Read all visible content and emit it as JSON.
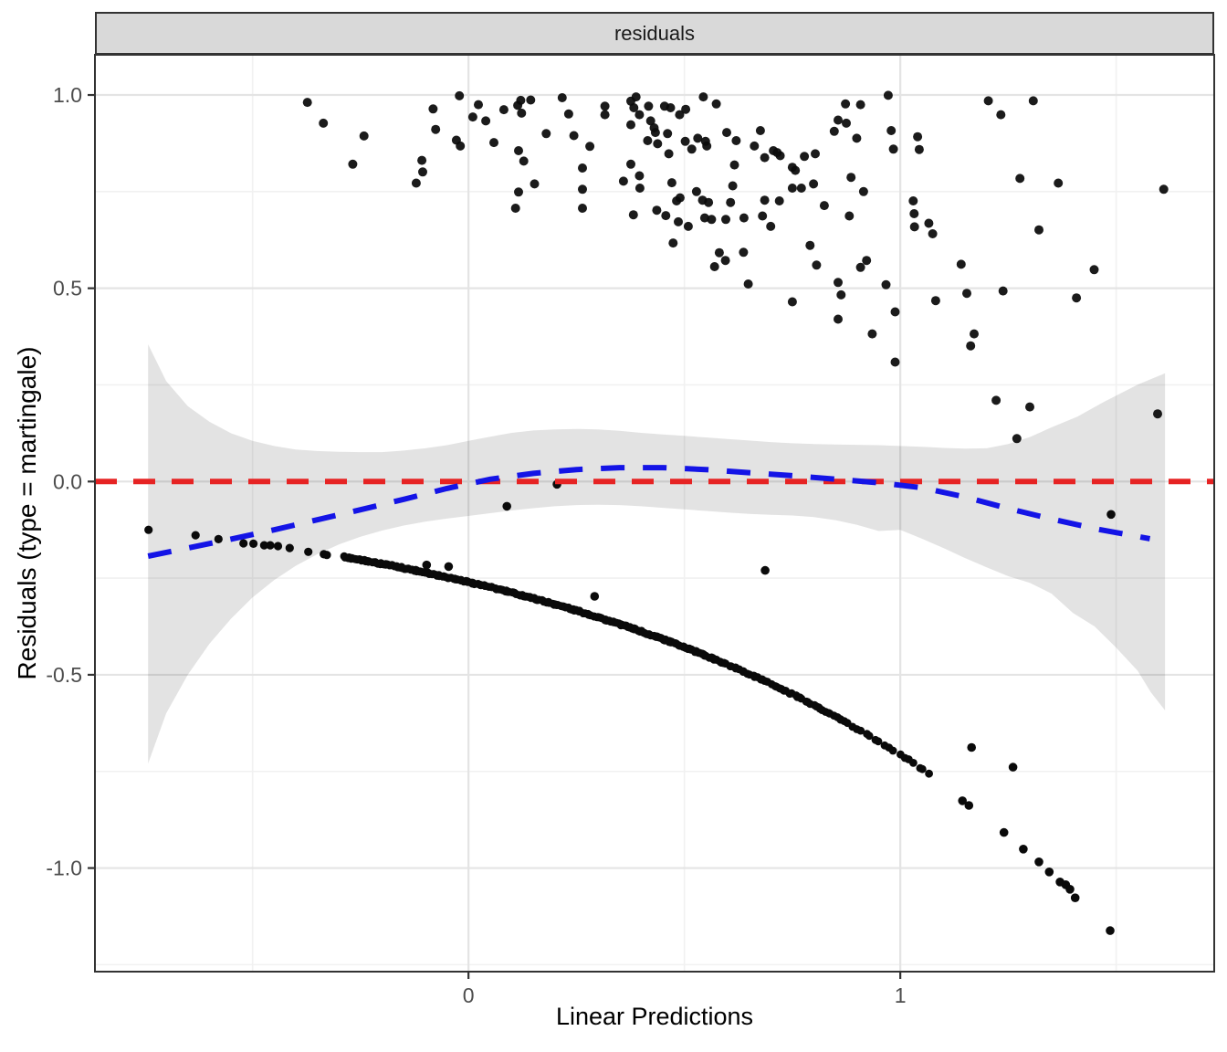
{
  "strip": {
    "label": "residuals"
  },
  "axis": {
    "x": {
      "label": "Linear Predictions",
      "range": [
        -0.865,
        1.727
      ],
      "ticks": [
        {
          "v": 0,
          "t": "0"
        },
        {
          "v": 1,
          "t": "1"
        }
      ],
      "minor": [
        -0.5,
        0.5,
        1.5
      ]
    },
    "y": {
      "label": "Residuals (type = martingale)",
      "range": [
        -1.268,
        1.104
      ],
      "ticks": [
        {
          "v": 1.0,
          "t": "1.0"
        },
        {
          "v": 0.5,
          "t": "0.5"
        },
        {
          "v": 0.0,
          "t": "0.0"
        },
        {
          "v": -0.5,
          "t": "-0.5"
        },
        {
          "v": -1.0,
          "t": "-1.0"
        }
      ],
      "minor": [
        0.75,
        0.25,
        -0.25,
        -0.75,
        -1.25
      ]
    }
  },
  "colors": {
    "reference_line": "#E62323",
    "smooth_line": "#1414E6",
    "band_fill": "#000000",
    "band_opacity": 0.11,
    "point": "#0a0a0a",
    "grid_major": "#E4E4E4",
    "grid_minor": "#F1F1F1",
    "panel_border": "#333333",
    "tick_label": "#4D4D4D",
    "tick_mark": "#333333"
  },
  "chart_data": {
    "type": "scatter",
    "facet_label": "residuals",
    "xlabel": "Linear Predictions",
    "ylabel": "Residuals (type = martingale)",
    "x_ticks": [
      0,
      1
    ],
    "y_ticks": [
      1.0,
      0.5,
      0.0,
      -0.5,
      -1.0
    ],
    "grid": true,
    "reference_line": {
      "y": 0,
      "color": "red",
      "linetype": "dashed"
    },
    "smooth": {
      "color": "blue",
      "linetype": "dashed",
      "line": [
        [
          -0.742,
          -0.193
        ],
        [
          -0.65,
          -0.172
        ],
        [
          -0.55,
          -0.149
        ],
        [
          -0.45,
          -0.125
        ],
        [
          -0.35,
          -0.099
        ],
        [
          -0.25,
          -0.073
        ],
        [
          -0.15,
          -0.046
        ],
        [
          -0.05,
          -0.018
        ],
        [
          0.05,
          0.006
        ],
        [
          0.15,
          0.021
        ],
        [
          0.25,
          0.031
        ],
        [
          0.35,
          0.036
        ],
        [
          0.45,
          0.036
        ],
        [
          0.55,
          0.031
        ],
        [
          0.65,
          0.023
        ],
        [
          0.75,
          0.015
        ],
        [
          0.85,
          0.006
        ],
        [
          0.95,
          -0.003
        ],
        [
          1.05,
          -0.016
        ],
        [
          1.15,
          -0.04
        ],
        [
          1.25,
          -0.07
        ],
        [
          1.35,
          -0.097
        ],
        [
          1.45,
          -0.122
        ],
        [
          1.578,
          -0.148
        ]
      ]
    },
    "confidence_band": {
      "upper": [
        [
          -0.742,
          0.355
        ],
        [
          -0.7,
          0.26
        ],
        [
          -0.65,
          0.195
        ],
        [
          -0.6,
          0.155
        ],
        [
          -0.55,
          0.125
        ],
        [
          -0.5,
          0.105
        ],
        [
          -0.45,
          0.092
        ],
        [
          -0.4,
          0.083
        ],
        [
          -0.35,
          0.079
        ],
        [
          -0.3,
          0.077
        ],
        [
          -0.25,
          0.076
        ],
        [
          -0.2,
          0.076
        ],
        [
          -0.15,
          0.08
        ],
        [
          -0.1,
          0.086
        ],
        [
          -0.05,
          0.094
        ],
        [
          0.0,
          0.105
        ],
        [
          0.05,
          0.116
        ],
        [
          0.1,
          0.126
        ],
        [
          0.15,
          0.132
        ],
        [
          0.2,
          0.135
        ],
        [
          0.25,
          0.136
        ],
        [
          0.3,
          0.135
        ],
        [
          0.35,
          0.131
        ],
        [
          0.4,
          0.126
        ],
        [
          0.45,
          0.122
        ],
        [
          0.5,
          0.118
        ],
        [
          0.55,
          0.114
        ],
        [
          0.6,
          0.11
        ],
        [
          0.65,
          0.106
        ],
        [
          0.7,
          0.102
        ],
        [
          0.75,
          0.099
        ],
        [
          0.8,
          0.097
        ],
        [
          0.85,
          0.096
        ],
        [
          0.9,
          0.095
        ],
        [
          0.95,
          0.094
        ],
        [
          1.0,
          0.092
        ],
        [
          1.05,
          0.09
        ],
        [
          1.1,
          0.087
        ],
        [
          1.15,
          0.085
        ],
        [
          1.2,
          0.086
        ],
        [
          1.25,
          0.097
        ],
        [
          1.3,
          0.115
        ],
        [
          1.35,
          0.14
        ],
        [
          1.41,
          0.168
        ],
        [
          1.47,
          0.205
        ],
        [
          1.55,
          0.251
        ],
        [
          1.613,
          0.28
        ]
      ],
      "lower": [
        [
          -0.742,
          -0.73
        ],
        [
          -0.7,
          -0.6
        ],
        [
          -0.65,
          -0.5
        ],
        [
          -0.6,
          -0.42
        ],
        [
          -0.55,
          -0.355
        ],
        [
          -0.5,
          -0.3
        ],
        [
          -0.45,
          -0.255
        ],
        [
          -0.4,
          -0.218
        ],
        [
          -0.35,
          -0.188
        ],
        [
          -0.3,
          -0.163
        ],
        [
          -0.25,
          -0.143
        ],
        [
          -0.2,
          -0.127
        ],
        [
          -0.15,
          -0.114
        ],
        [
          -0.1,
          -0.104
        ],
        [
          -0.05,
          -0.096
        ],
        [
          0.0,
          -0.089
        ],
        [
          0.05,
          -0.082
        ],
        [
          0.1,
          -0.075
        ],
        [
          0.15,
          -0.069
        ],
        [
          0.2,
          -0.064
        ],
        [
          0.25,
          -0.061
        ],
        [
          0.3,
          -0.06
        ],
        [
          0.35,
          -0.061
        ],
        [
          0.4,
          -0.064
        ],
        [
          0.45,
          -0.068
        ],
        [
          0.5,
          -0.072
        ],
        [
          0.55,
          -0.076
        ],
        [
          0.6,
          -0.08
        ],
        [
          0.65,
          -0.084
        ],
        [
          0.7,
          -0.086
        ],
        [
          0.75,
          -0.088
        ],
        [
          0.8,
          -0.092
        ],
        [
          0.85,
          -0.1
        ],
        [
          0.9,
          -0.112
        ],
        [
          0.95,
          -0.128
        ],
        [
          1.0,
          -0.125
        ],
        [
          1.05,
          -0.148
        ],
        [
          1.1,
          -0.172
        ],
        [
          1.15,
          -0.198
        ],
        [
          1.2,
          -0.222
        ],
        [
          1.25,
          -0.245
        ],
        [
          1.3,
          -0.262
        ],
        [
          1.35,
          -0.29
        ],
        [
          1.4,
          -0.34
        ],
        [
          1.45,
          -0.375
        ],
        [
          1.5,
          -0.43
        ],
        [
          1.55,
          -0.49
        ],
        [
          1.58,
          -0.545
        ],
        [
          1.613,
          -0.592
        ]
      ]
    },
    "upper_points": [
      [
        -0.373,
        0.981
      ],
      [
        -0.336,
        0.927
      ],
      [
        -0.268,
        0.821
      ],
      [
        -0.242,
        0.894
      ],
      [
        -0.121,
        0.772
      ],
      [
        -0.108,
        0.831
      ],
      [
        -0.106,
        0.801
      ],
      [
        -0.082,
        0.964
      ],
      [
        -0.076,
        0.911
      ],
      [
        -0.028,
        0.883
      ],
      [
        -0.021,
        0.998
      ],
      [
        -0.019,
        0.868
      ],
      [
        0.01,
        0.943
      ],
      [
        0.023,
        0.975
      ],
      [
        0.04,
        0.933
      ],
      [
        0.059,
        0.877
      ],
      [
        0.082,
        0.962
      ],
      [
        0.109,
        0.707
      ],
      [
        0.114,
        0.973
      ],
      [
        0.116,
        0.856
      ],
      [
        0.116,
        0.749
      ],
      [
        0.121,
        0.986
      ],
      [
        0.123,
        0.953
      ],
      [
        0.128,
        0.829
      ],
      [
        0.144,
        0.987
      ],
      [
        0.153,
        0.77
      ],
      [
        0.18,
        0.9
      ],
      [
        0.217,
        0.993
      ],
      [
        0.232,
        0.951
      ],
      [
        0.244,
        0.895
      ],
      [
        0.264,
        0.811
      ],
      [
        0.264,
        0.756
      ],
      [
        0.264,
        0.707
      ],
      [
        0.281,
        0.867
      ],
      [
        0.316,
        0.971
      ],
      [
        0.316,
        0.949
      ],
      [
        0.359,
        0.777
      ],
      [
        0.376,
        0.984
      ],
      [
        0.376,
        0.923
      ],
      [
        0.376,
        0.821
      ],
      [
        0.382,
        0.69
      ],
      [
        0.383,
        0.967
      ],
      [
        0.388,
        0.995
      ],
      [
        0.396,
        0.949
      ],
      [
        0.396,
        0.791
      ],
      [
        0.397,
        0.759
      ],
      [
        0.415,
        0.882
      ],
      [
        0.417,
        0.971
      ],
      [
        0.422,
        0.933
      ],
      [
        0.43,
        0.915
      ],
      [
        0.433,
        0.903
      ],
      [
        0.436,
        0.702
      ],
      [
        0.438,
        0.874
      ],
      [
        0.454,
        0.971
      ],
      [
        0.457,
        0.688
      ],
      [
        0.461,
        0.9
      ],
      [
        0.464,
        0.848
      ],
      [
        0.468,
        0.967
      ],
      [
        0.471,
        0.773
      ],
      [
        0.474,
        0.617
      ],
      [
        0.482,
        0.726
      ],
      [
        0.486,
        0.672
      ],
      [
        0.489,
        0.949
      ],
      [
        0.49,
        0.734
      ],
      [
        0.502,
        0.88
      ],
      [
        0.503,
        0.963
      ],
      [
        0.509,
        0.66
      ],
      [
        0.517,
        0.86
      ],
      [
        0.528,
        0.75
      ],
      [
        0.531,
        0.888
      ],
      [
        0.542,
        0.728
      ],
      [
        0.544,
        0.995
      ],
      [
        0.547,
        0.682
      ],
      [
        0.549,
        0.88
      ],
      [
        0.552,
        0.868
      ],
      [
        0.556,
        0.722
      ],
      [
        0.563,
        0.678
      ],
      [
        0.57,
        0.556
      ],
      [
        0.574,
        0.977
      ],
      [
        0.581,
        0.592
      ],
      [
        0.595,
        0.572
      ],
      [
        0.596,
        0.678
      ],
      [
        0.598,
        0.903
      ],
      [
        0.607,
        0.722
      ],
      [
        0.612,
        0.765
      ],
      [
        0.616,
        0.819
      ],
      [
        0.62,
        0.882
      ],
      [
        0.637,
        0.593
      ],
      [
        0.638,
        0.682
      ],
      [
        0.648,
        0.511
      ],
      [
        0.662,
        0.868
      ],
      [
        0.676,
        0.908
      ],
      [
        0.681,
        0.687
      ],
      [
        0.686,
        0.838
      ],
      [
        0.686,
        0.728
      ],
      [
        0.7,
        0.66
      ],
      [
        0.706,
        0.856
      ],
      [
        0.715,
        0.851
      ],
      [
        0.72,
        0.726
      ],
      [
        0.722,
        0.843
      ],
      [
        0.75,
        0.813
      ],
      [
        0.75,
        0.759
      ],
      [
        0.757,
        0.805
      ],
      [
        0.771,
        0.759
      ],
      [
        0.778,
        0.841
      ],
      [
        0.791,
        0.611
      ],
      [
        0.799,
        0.77
      ],
      [
        0.803,
        0.848
      ],
      [
        0.806,
        0.56
      ],
      [
        0.824,
        0.714
      ],
      [
        0.847,
        0.906
      ],
      [
        0.856,
        0.935
      ],
      [
        0.873,
        0.977
      ],
      [
        0.875,
        0.927
      ],
      [
        0.882,
        0.687
      ],
      [
        0.886,
        0.787
      ],
      [
        0.899,
        0.888
      ],
      [
        0.908,
        0.975
      ],
      [
        0.908,
        0.554
      ],
      [
        0.915,
        0.75
      ],
      [
        0.922,
        0.572
      ],
      [
        0.972,
        0.999
      ],
      [
        0.979,
        0.908
      ],
      [
        0.984,
        0.86
      ],
      [
        1.03,
        0.726
      ],
      [
        1.032,
        0.693
      ],
      [
        1.033,
        0.659
      ],
      [
        1.04,
        0.892
      ],
      [
        1.044,
        0.859
      ],
      [
        1.066,
        0.668
      ],
      [
        1.075,
        0.641
      ],
      [
        1.141,
        0.562
      ],
      [
        1.204,
        0.985
      ],
      [
        1.233,
        0.949
      ],
      [
        1.277,
        0.784
      ],
      [
        1.308,
        0.985
      ],
      [
        1.321,
        0.651
      ],
      [
        1.366,
        0.772
      ],
      [
        1.449,
        0.548
      ],
      [
        1.61,
        0.756
      ],
      [
        0.75,
        0.465
      ],
      [
        0.856,
        0.515
      ],
      [
        0.856,
        0.42
      ],
      [
        0.863,
        0.483
      ],
      [
        0.935,
        0.382
      ],
      [
        0.967,
        0.509
      ],
      [
        0.988,
        0.439
      ],
      [
        0.988,
        0.309
      ],
      [
        1.082,
        0.468
      ],
      [
        1.154,
        0.487
      ],
      [
        1.163,
        0.351
      ],
      [
        1.171,
        0.382
      ],
      [
        1.222,
        0.21
      ],
      [
        1.238,
        0.493
      ],
      [
        1.27,
        0.111
      ],
      [
        1.3,
        0.193
      ],
      [
        1.408,
        0.475
      ],
      [
        1.596,
        0.175
      ]
    ],
    "censored_sparse_points": [
      [
        -0.741,
        -0.125
      ],
      [
        -0.632,
        -0.139
      ],
      [
        -0.579,
        -0.149
      ],
      [
        -0.521,
        -0.16
      ],
      [
        -0.498,
        -0.161
      ],
      [
        -0.473,
        -0.165
      ],
      [
        -0.459,
        -0.165
      ],
      [
        -0.441,
        -0.167
      ],
      [
        -0.414,
        -0.172
      ],
      [
        -0.371,
        -0.182
      ],
      [
        -0.335,
        -0.188
      ],
      [
        -0.328,
        -0.19
      ]
    ],
    "censored_dense_curve": {
      "model": "y = -0.26 * exp(x)",
      "a": -0.26,
      "k": 1.0,
      "segments": [
        {
          "x0": -0.29,
          "x1": 0.32,
          "n": 170
        },
        {
          "x0": 0.32,
          "x1": 0.6,
          "n": 80
        },
        {
          "x0": 0.6,
          "x1": 0.88,
          "n": 46
        },
        {
          "x0": 0.88,
          "x1": 1.07,
          "n": 17
        }
      ]
    },
    "tail_points": [
      [
        1.144,
        -0.826
      ],
      [
        1.159,
        -0.838
      ],
      [
        1.24,
        -0.908
      ],
      [
        1.285,
        -0.951
      ],
      [
        1.321,
        -0.984
      ],
      [
        1.345,
        -1.01
      ],
      [
        1.37,
        -1.036
      ],
      [
        1.383,
        -1.043
      ],
      [
        1.393,
        -1.055
      ],
      [
        1.405,
        -1.077
      ],
      [
        1.486,
        -1.162
      ]
    ],
    "outlier_points": [
      [
        -0.097,
        -0.216
      ],
      [
        -0.046,
        -0.22
      ],
      [
        0.089,
        -0.064
      ],
      [
        0.205,
        -0.007
      ],
      [
        0.292,
        -0.297
      ],
      [
        0.687,
        -0.23
      ],
      [
        1.165,
        -0.688
      ],
      [
        1.261,
        -0.739
      ],
      [
        1.488,
        -0.085
      ]
    ]
  }
}
